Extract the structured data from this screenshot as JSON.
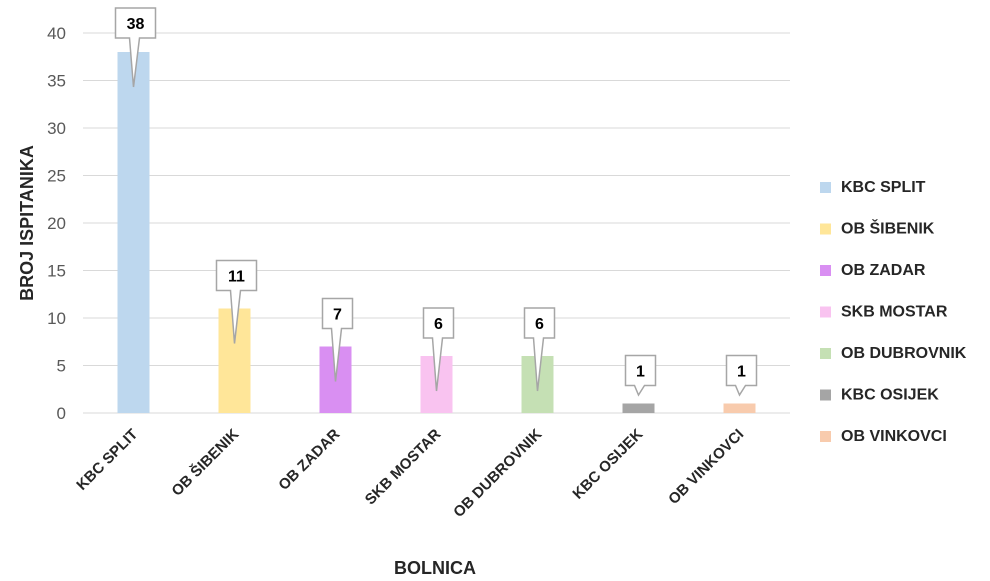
{
  "chart_data": {
    "type": "bar",
    "xlabel": "BOLNICA",
    "ylabel": "BROJ ISPITANIKA",
    "ylim": [
      0,
      40
    ],
    "yticks": [
      0,
      5,
      10,
      15,
      20,
      25,
      30,
      35,
      40
    ],
    "grid": true,
    "legend_position": "right",
    "categories": [
      "KBC SPLIT",
      "OB ŠIBENIK",
      "OB ZADAR",
      "SKB MOSTAR",
      "OB DUBROVNIK",
      "KBC OSIJEK",
      "OB VINKOVCI"
    ],
    "values": [
      38,
      11,
      7,
      6,
      6,
      1,
      1
    ],
    "colors": [
      "#bdd7ee",
      "#ffe699",
      "#d98ff2",
      "#f9c3f0",
      "#c5e0b4",
      "#a5a5a5",
      "#f8cbad"
    ],
    "legend": [
      "KBC SPLIT",
      "OB ŠIBENIK",
      "OB ZADAR",
      "SKB MOSTAR",
      "OB DUBROVNIK",
      "KBC OSIJEK",
      "OB VINKOVCI"
    ]
  }
}
